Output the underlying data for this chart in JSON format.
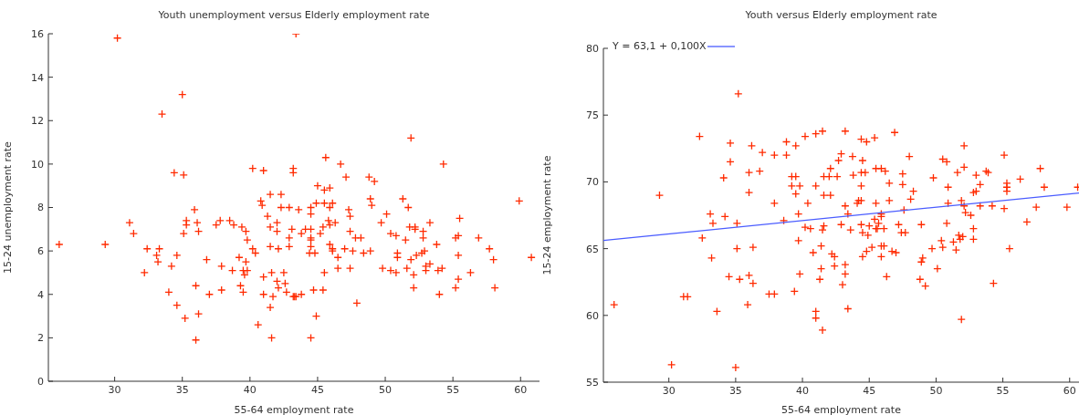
{
  "chart_data": [
    {
      "type": "scatter",
      "title": "Youth unemployment versus Elderly employment rate",
      "xlabel": "55-64 employment rate",
      "ylabel": "15-24 unemployment rate",
      "xlim": [
        25.1,
        61.4
      ],
      "ylim": [
        0,
        16
      ],
      "xticks": [
        30,
        35,
        40,
        45,
        50,
        55,
        60
      ],
      "yticks": [
        0,
        2,
        4,
        6,
        8,
        10,
        12,
        14,
        16
      ],
      "grid": false,
      "series": [
        {
          "marker": "cross",
          "color": "#ff2a00",
          "x": [
            25.9,
            30.2,
            29.3,
            31.1,
            31.4,
            32.2,
            32.4,
            33.1,
            33.2,
            33.3,
            33.5,
            34.0,
            34.2,
            34.4,
            34.6,
            34.6,
            35.0,
            35.1,
            35.1,
            35.2,
            35.3,
            35.3,
            35.9,
            36.0,
            36.0,
            36.1,
            36.2,
            36.2,
            36.8,
            37.0,
            37.5,
            37.8,
            37.9,
            37.9,
            38.5,
            38.7,
            38.8,
            39.2,
            39.3,
            39.4,
            39.5,
            39.5,
            39.7,
            39.7,
            39.6,
            39.8,
            39.8,
            40.2,
            40.2,
            40.4,
            40.6,
            40.8,
            40.9,
            41.0,
            41.0,
            41.0,
            41.3,
            41.5,
            41.5,
            41.5,
            41.5,
            41.6,
            41.6,
            41.7,
            42.0,
            42.0,
            42.1,
            42.0,
            42.1,
            42.3,
            42.3,
            42.5,
            42.6,
            42.7,
            42.9,
            42.9,
            42.9,
            43.2,
            43.2,
            43.1,
            43.4,
            43.2,
            43.6,
            43.3,
            43.4,
            43.8,
            43.8,
            44.1,
            44.5,
            44.5,
            44.5,
            44.5,
            44.5,
            44.5,
            44.4,
            44.8,
            44.7,
            44.5,
            44.9,
            45.0,
            44.9,
            45.2,
            45.4,
            45.5,
            45.5,
            45.5,
            45.4,
            45.6,
            45.8,
            45.9,
            45.9,
            46.1,
            45.9,
            45.9,
            46.1,
            46.1,
            46.3,
            46.5,
            46.5,
            46.7,
            47.0,
            47.1,
            47.3,
            47.4,
            47.4,
            47.4,
            47.6,
            47.8,
            48.2,
            47.9,
            48.4,
            48.8,
            49.2,
            48.9,
            49.0,
            48.9,
            49.7,
            49.8,
            50.1,
            50.4,
            50.4,
            50.8,
            50.9,
            50.9,
            50.8,
            51.3,
            51.5,
            51.7,
            51.6,
            51.9,
            51.8,
            52.2,
            52.2,
            51.9,
            52.1,
            52.1,
            52.3,
            52.7,
            52.9,
            52.8,
            52.8,
            53.0,
            53.0,
            53.3,
            53.3,
            53.8,
            53.9,
            54.2,
            54.0,
            54.3,
            55.2,
            55.4,
            55.4,
            55.2,
            55.4,
            55.5,
            56.3,
            56.9,
            57.7,
            58.0,
            58.1,
            59.9,
            60.8
          ],
          "values": [
            6.3,
            15.8,
            6.3,
            7.3,
            6.8,
            5.0,
            6.1,
            5.8,
            5.5,
            6.1,
            12.3,
            4.1,
            5.3,
            9.6,
            3.5,
            5.8,
            13.2,
            9.5,
            6.8,
            2.9,
            7.4,
            7.2,
            7.9,
            4.4,
            1.9,
            7.3,
            3.1,
            6.9,
            5.6,
            4.0,
            7.2,
            7.4,
            5.3,
            4.2,
            7.4,
            5.1,
            7.2,
            5.7,
            4.4,
            7.1,
            5.1,
            4.1,
            6.9,
            5.5,
            4.9,
            6.5,
            5.1,
            9.8,
            6.1,
            5.9,
            2.6,
            8.3,
            8.1,
            9.7,
            4.8,
            4.0,
            7.6,
            8.6,
            7.1,
            6.2,
            3.4,
            5.0,
            2.0,
            3.9,
            7.3,
            6.9,
            6.1,
            4.6,
            4.3,
            8.6,
            8.0,
            5.0,
            4.5,
            4.1,
            8.0,
            6.6,
            6.2,
            9.8,
            3.9,
            7.0,
            16.0,
            9.6,
            7.9,
            3.9,
            3.9,
            4.0,
            6.8,
            7.0,
            7.7,
            8.0,
            7.0,
            6.6,
            6.5,
            6.2,
            5.9,
            5.9,
            4.2,
            2.0,
            3.0,
            9.0,
            8.2,
            6.8,
            7.1,
            8.8,
            8.2,
            5.0,
            4.2,
            10.3,
            7.4,
            8.9,
            8.0,
            8.2,
            7.2,
            6.3,
            6.1,
            6.0,
            7.3,
            5.7,
            5.2,
            10.0,
            6.1,
            9.4,
            7.9,
            7.6,
            6.9,
            5.2,
            6.0,
            6.6,
            6.6,
            3.6,
            5.9,
            9.4,
            9.2,
            8.4,
            8.1,
            6.0,
            7.3,
            5.2,
            7.7,
            6.8,
            5.1,
            6.7,
            5.9,
            5.7,
            5.0,
            8.4,
            6.5,
            8.0,
            5.2,
            11.2,
            7.1,
            7.1,
            7.0,
            5.6,
            4.9,
            4.3,
            5.8,
            5.9,
            6.0,
            6.9,
            6.6,
            5.3,
            5.1,
            7.3,
            5.4,
            6.3,
            5.1,
            5.2,
            4.0,
            10.0,
            6.6,
            6.7,
            5.8,
            4.3,
            4.7,
            7.5,
            5.0,
            6.6,
            6.1,
            5.6,
            4.3,
            8.3,
            5.7
          ]
        }
      ]
    },
    {
      "type": "scatter",
      "title": "Youth versus Elderly employment rate",
      "xlabel": "55-64 employment rate",
      "ylabel": "15-24 employment rate",
      "xlim": [
        25.1,
        60.7
      ],
      "ylim": [
        55,
        80
      ],
      "xticks": [
        30,
        35,
        40,
        45,
        50,
        55,
        60
      ],
      "yticks": [
        55,
        60,
        65,
        70,
        75,
        80
      ],
      "grid": false,
      "legend": "top left",
      "series": [
        {
          "marker": "cross",
          "color": "#ff2a00",
          "x": [
            25.9,
            29.3,
            30.2,
            31.1,
            31.4,
            32.3,
            32.5,
            33.1,
            33.3,
            33.2,
            33.6,
            34.1,
            34.2,
            34.5,
            34.6,
            34.6,
            35.1,
            35.1,
            35.2,
            35.0,
            35.3,
            36.0,
            36.0,
            36.0,
            35.9,
            36.2,
            36.3,
            36.3,
            36.8,
            37.0,
            37.5,
            37.9,
            37.9,
            37.9,
            38.6,
            38.8,
            38.8,
            39.2,
            39.2,
            39.5,
            39.5,
            39.5,
            39.7,
            39.7,
            39.8,
            39.8,
            39.4,
            40.2,
            40.2,
            40.4,
            40.6,
            40.8,
            41.0,
            41.0,
            41.0,
            41.0,
            41.3,
            41.4,
            41.5,
            41.5,
            41.5,
            41.6,
            41.6,
            41.6,
            41.4,
            42.1,
            42.1,
            42.0,
            42.6,
            42.2,
            42.4,
            42.4,
            42.7,
            42.9,
            43.2,
            43.75,
            43.8,
            43.2,
            43.4,
            42.9,
            43.6,
            43.2,
            43.2,
            43.0,
            43.4,
            44.4,
            44.8,
            45.4,
            44.5,
            44.4,
            44.7,
            44.4,
            44.2,
            44.4,
            44.1,
            45.5,
            45.9,
            46.2,
            45.5,
            46.5,
            46.5,
            45.9,
            45.9,
            45.4,
            45.7,
            44.4,
            45.0,
            45.5,
            45.6,
            46.1,
            44.5,
            44.9,
            45.2,
            45.9,
            46.1,
            44.8,
            44.5,
            45.9,
            46.3,
            46.7,
            47.0,
            46.9,
            47.5,
            47.5,
            47.6,
            47.2,
            47.4,
            47.7,
            48.0,
            48.3,
            48.1,
            48.9,
            49.0,
            48.9,
            48.8,
            49.2,
            49.7,
            49.8,
            50.1,
            50.5,
            50.8,
            50.9,
            50.9,
            50.4,
            50.5,
            50.8,
            51.3,
            51.5,
            51.6,
            51.7,
            52.0,
            51.8,
            51.9,
            52.1,
            52.1,
            52.1,
            52.2,
            52.6,
            51.9,
            52.8,
            52.8,
            52.8,
            53.0,
            53.0,
            53.3,
            53.3,
            53.75,
            53.9,
            54.2,
            54.3,
            55.1,
            55.3,
            55.3,
            55.3,
            55.1,
            55.5,
            56.3,
            56.8,
            57.5,
            57.8,
            58.1,
            59.8,
            60.6
          ],
          "values": [
            60.8,
            69.0,
            56.3,
            61.4,
            61.4,
            73.4,
            65.8,
            67.6,
            66.9,
            64.3,
            60.3,
            70.3,
            67.4,
            62.9,
            72.9,
            71.5,
            66.9,
            65.0,
            76.6,
            56.1,
            62.7,
            69.2,
            70.7,
            63.0,
            60.8,
            72.7,
            65.1,
            62.4,
            70.8,
            72.2,
            61.6,
            61.6,
            72.0,
            68.4,
            67.1,
            73.0,
            72.0,
            69.7,
            70.4,
            70.4,
            69.1,
            72.7,
            67.6,
            65.6,
            69.7,
            63.1,
            61.8,
            73.4,
            66.6,
            68.4,
            66.5,
            64.7,
            73.6,
            69.7,
            60.3,
            59.8,
            62.7,
            65.2,
            66.4,
            73.8,
            58.9,
            69.0,
            70.4,
            66.7,
            63.5,
            71.0,
            69.0,
            70.4,
            70.4,
            64.6,
            64.4,
            63.7,
            71.6,
            72.1,
            73.8,
            71.9,
            70.5,
            68.2,
            67.6,
            66.8,
            66.4,
            63.8,
            63.1,
            62.3,
            60.5,
            73.2,
            73.0,
            73.3,
            71.6,
            70.7,
            70.7,
            69.7,
            68.6,
            68.6,
            68.4,
            71.0,
            71.0,
            70.8,
            68.4,
            69.9,
            68.6,
            67.6,
            67.4,
            67.2,
            66.9,
            66.8,
            66.7,
            66.5,
            66.5,
            66.5,
            66.2,
            66.0,
            65.1,
            65.2,
            65.2,
            64.8,
            64.4,
            64.4,
            62.9,
            64.8,
            64.7,
            73.7,
            70.6,
            69.8,
            67.9,
            66.8,
            66.2,
            66.2,
            71.9,
            69.3,
            68.7,
            66.8,
            64.3,
            64.0,
            62.7,
            62.2,
            65.0,
            70.3,
            63.5,
            71.7,
            71.5,
            69.6,
            68.4,
            65.6,
            65.1,
            66.9,
            65.5,
            64.9,
            70.7,
            66.0,
            65.9,
            65.7,
            68.6,
            68.2,
            72.7,
            71.1,
            67.7,
            67.5,
            59.7,
            66.5,
            65.7,
            69.2,
            69.3,
            70.5,
            69.8,
            68.2,
            70.8,
            70.7,
            68.2,
            62.4,
            72.0,
            69.9,
            69.6,
            69.3,
            68.0,
            65.0,
            70.2,
            67.0,
            68.1,
            71.0,
            69.6,
            68.1,
            69.6
          ]
        },
        {
          "type": "line",
          "marker": "none",
          "name": "Y = 63,1 + 0,100X",
          "color": "#4a5cff",
          "x": [
            25.1,
            60.7
          ],
          "values": [
            65.61,
            69.17
          ]
        }
      ]
    }
  ]
}
